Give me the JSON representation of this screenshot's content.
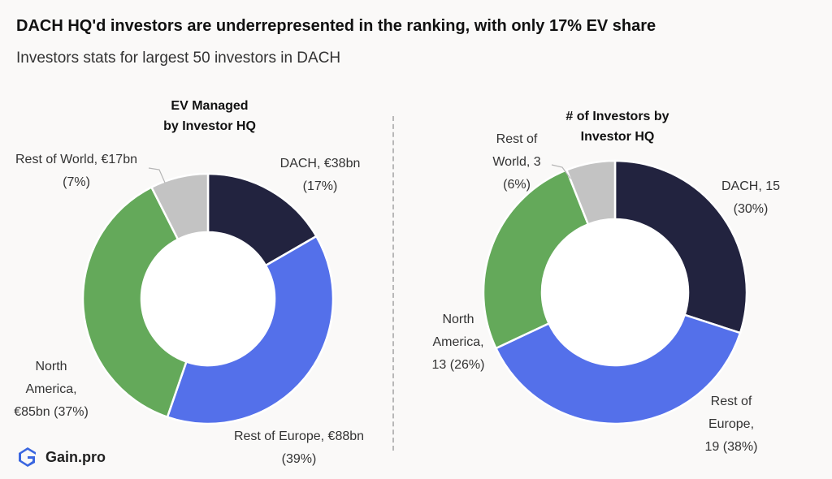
{
  "header": {
    "title": "DACH HQ'd investors are underrepresented in the ranking, with only 17% EV share",
    "subtitle": "Investors stats for largest 50 investors in DACH"
  },
  "brand": {
    "name": "Gain.pro",
    "color": "#3a66e0"
  },
  "colors": {
    "dach": "#22233f",
    "rest_of_europe": "#5470ea",
    "north_america": "#64a95a",
    "rest_of_world": "#c3c3c3"
  },
  "chart_data": [
    {
      "type": "pie",
      "variant": "donut",
      "title_lines": [
        "EV Managed",
        "by Investor HQ"
      ],
      "slices": [
        {
          "name": "DACH",
          "value": 38,
          "pct": 17,
          "color": "#22233f",
          "label_lines": [
            "DACH, €38bn",
            "(17%)"
          ]
        },
        {
          "name": "Rest of Europe",
          "value": 88,
          "pct": 39,
          "color": "#5470ea",
          "label_lines": [
            "Rest of Europe, €88bn",
            "(39%)"
          ]
        },
        {
          "name": "North America",
          "value": 85,
          "pct": 37,
          "color": "#64a95a",
          "label_lines": [
            "North",
            "America,",
            "€85bn (37%)"
          ]
        },
        {
          "name": "Rest of World",
          "value": 17,
          "pct": 7,
          "color": "#c3c3c3",
          "label_lines": [
            "Rest of  World, €17bn",
            "(7%)"
          ]
        }
      ]
    },
    {
      "type": "pie",
      "variant": "donut",
      "title_lines": [
        "# of Investors by",
        "Investor HQ"
      ],
      "slices": [
        {
          "name": "DACH",
          "value": 15,
          "pct": 30,
          "color": "#22233f",
          "label_lines": [
            "DACH, 15",
            "(30%)"
          ]
        },
        {
          "name": "Rest of Europe",
          "value": 19,
          "pct": 38,
          "color": "#5470ea",
          "label_lines": [
            "Rest of",
            "Europe,",
            "19 (38%)"
          ]
        },
        {
          "name": "North America",
          "value": 13,
          "pct": 26,
          "color": "#64a95a",
          "label_lines": [
            "North",
            "America,",
            "13 (26%)"
          ]
        },
        {
          "name": "Rest of World",
          "value": 3,
          "pct": 6,
          "color": "#c3c3c3",
          "label_lines": [
            "Rest of",
            "World, 3",
            "(6%)"
          ]
        }
      ]
    }
  ]
}
